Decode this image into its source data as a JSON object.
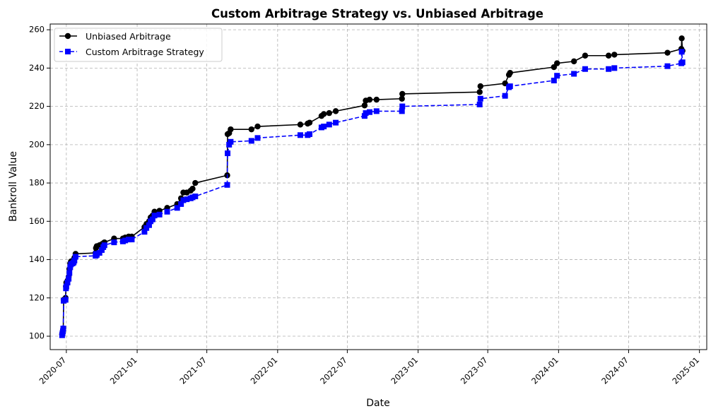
{
  "chart_data": {
    "type": "line",
    "title": "Custom Arbitrage Strategy vs. Unbiased Arbitrage",
    "xlabel": "Date",
    "ylabel": "Bankroll Value",
    "xlim": [
      "2020-05-20",
      "2025-01-20"
    ],
    "ylim": [
      93,
      263
    ],
    "x_ticks": [
      "2020-07-01",
      "2021-01-01",
      "2021-07-01",
      "2022-01-01",
      "2022-07-01",
      "2023-01-01",
      "2023-07-01",
      "2024-01-01",
      "2024-07-01",
      "2025-01-01"
    ],
    "x_tick_labels": [
      "2020-07",
      "2021-01",
      "2021-07",
      "2022-01",
      "2022-07",
      "2023-01",
      "2023-07",
      "2024-01",
      "2024-07",
      "2025-01"
    ],
    "y_ticks": [
      100,
      120,
      140,
      160,
      180,
      200,
      220,
      240,
      260
    ],
    "grid": true,
    "legend_position": "top-left",
    "series": [
      {
        "name": "Unbiased Arbitrage",
        "color": "#000000",
        "line_style": "solid",
        "marker": "circle",
        "points": [
          [
            "2020-06-20",
            101
          ],
          [
            "2020-06-21",
            102
          ],
          [
            "2020-06-22",
            103
          ],
          [
            "2020-06-23",
            104
          ],
          [
            "2020-06-24",
            119
          ],
          [
            "2020-06-29",
            120
          ],
          [
            "2020-06-30",
            126
          ],
          [
            "2020-07-01",
            128
          ],
          [
            "2020-07-04",
            129
          ],
          [
            "2020-07-07",
            131
          ],
          [
            "2020-07-09",
            135
          ],
          [
            "2020-07-11",
            138
          ],
          [
            "2020-07-13",
            139
          ],
          [
            "2020-07-17",
            139
          ],
          [
            "2020-07-20",
            140
          ],
          [
            "2020-07-22",
            141
          ],
          [
            "2020-07-25",
            143
          ],
          [
            "2020-09-15",
            143.5
          ],
          [
            "2020-09-16",
            146
          ],
          [
            "2020-09-18",
            147
          ],
          [
            "2020-09-25",
            147.5
          ],
          [
            "2020-10-01",
            148
          ],
          [
            "2020-10-05",
            148.5
          ],
          [
            "2020-10-08",
            149
          ],
          [
            "2020-11-02",
            151
          ],
          [
            "2020-11-25",
            151
          ],
          [
            "2020-12-01",
            151.5
          ],
          [
            "2020-12-10",
            152
          ],
          [
            "2020-12-18",
            152
          ],
          [
            "2021-01-20",
            157
          ],
          [
            "2021-01-25",
            158.5
          ],
          [
            "2021-02-01",
            160
          ],
          [
            "2021-02-05",
            162
          ],
          [
            "2021-02-10",
            163
          ],
          [
            "2021-02-15",
            165
          ],
          [
            "2021-02-28",
            165.5
          ],
          [
            "2021-03-20",
            167
          ],
          [
            "2021-04-15",
            169
          ],
          [
            "2021-04-25",
            172
          ],
          [
            "2021-05-01",
            175
          ],
          [
            "2021-05-10",
            175
          ],
          [
            "2021-05-20",
            176
          ],
          [
            "2021-05-25",
            177
          ],
          [
            "2021-06-01",
            180
          ],
          [
            "2021-08-23",
            184
          ],
          [
            "2021-08-24",
            205.5
          ],
          [
            "2021-08-28",
            206
          ],
          [
            "2021-09-01",
            208
          ],
          [
            "2021-10-25",
            208
          ],
          [
            "2021-11-10",
            209.5
          ],
          [
            "2022-03-01",
            210.5
          ],
          [
            "2022-03-20",
            211
          ],
          [
            "2022-03-25",
            211.5
          ],
          [
            "2022-04-25",
            215
          ],
          [
            "2022-05-01",
            216
          ],
          [
            "2022-05-15",
            216.5
          ],
          [
            "2022-06-01",
            217.5
          ],
          [
            "2022-08-15",
            220.5
          ],
          [
            "2022-08-18",
            223
          ],
          [
            "2022-08-28",
            223.5
          ],
          [
            "2022-09-15",
            223.5
          ],
          [
            "2022-11-20",
            224
          ],
          [
            "2022-11-21",
            226.5
          ],
          [
            "2023-06-10",
            227.5
          ],
          [
            "2023-06-12",
            230.5
          ],
          [
            "2023-08-15",
            232
          ],
          [
            "2023-08-25",
            236.5
          ],
          [
            "2023-08-28",
            237.5
          ],
          [
            "2023-12-20",
            240.5
          ],
          [
            "2023-12-28",
            242.5
          ],
          [
            "2024-02-10",
            243.5
          ],
          [
            "2024-03-10",
            246.5
          ],
          [
            "2024-05-10",
            246.5
          ],
          [
            "2024-05-25",
            247
          ],
          [
            "2024-10-10",
            248
          ],
          [
            "2024-11-15",
            250
          ],
          [
            "2024-11-16",
            255.5
          ],
          [
            "2024-11-18",
            249
          ]
        ]
      },
      {
        "name": "Custom Arbitrage Strategy",
        "color": "#0000ff",
        "line_style": "dashed",
        "marker": "square",
        "points": [
          [
            "2020-06-20",
            100.5
          ],
          [
            "2020-06-21",
            101.5
          ],
          [
            "2020-06-22",
            102.5
          ],
          [
            "2020-06-23",
            104
          ],
          [
            "2020-06-24",
            118.5
          ],
          [
            "2020-06-29",
            119
          ],
          [
            "2020-06-30",
            125
          ],
          [
            "2020-07-01",
            126
          ],
          [
            "2020-07-04",
            128
          ],
          [
            "2020-07-07",
            130
          ],
          [
            "2020-07-09",
            133
          ],
          [
            "2020-07-11",
            136
          ],
          [
            "2020-07-13",
            137.5
          ],
          [
            "2020-07-17",
            138
          ],
          [
            "2020-07-20",
            138.5
          ],
          [
            "2020-07-22",
            139.5
          ],
          [
            "2020-07-25",
            141.5
          ],
          [
            "2020-09-15",
            142
          ],
          [
            "2020-09-16",
            143
          ],
          [
            "2020-09-18",
            142.5
          ],
          [
            "2020-09-25",
            143.5
          ],
          [
            "2020-10-01",
            145
          ],
          [
            "2020-10-05",
            146.5
          ],
          [
            "2020-10-08",
            147.5
          ],
          [
            "2020-11-02",
            149
          ],
          [
            "2020-11-25",
            149.5
          ],
          [
            "2020-12-01",
            150
          ],
          [
            "2020-12-10",
            150.5
          ],
          [
            "2020-12-18",
            150.5
          ],
          [
            "2021-01-20",
            154.5
          ],
          [
            "2021-01-25",
            156.5
          ],
          [
            "2021-02-01",
            158
          ],
          [
            "2021-02-05",
            160
          ],
          [
            "2021-02-10",
            161
          ],
          [
            "2021-02-15",
            163
          ],
          [
            "2021-02-28",
            163.5
          ],
          [
            "2021-03-20",
            165
          ],
          [
            "2021-04-15",
            167
          ],
          [
            "2021-04-25",
            169
          ],
          [
            "2021-05-01",
            171
          ],
          [
            "2021-05-10",
            171.5
          ],
          [
            "2021-05-20",
            172
          ],
          [
            "2021-05-25",
            172.5
          ],
          [
            "2021-06-01",
            173
          ],
          [
            "2021-08-23",
            179
          ],
          [
            "2021-08-24",
            195.5
          ],
          [
            "2021-08-28",
            200
          ],
          [
            "2021-09-01",
            201.5
          ],
          [
            "2021-10-25",
            202
          ],
          [
            "2021-11-10",
            203.5
          ],
          [
            "2022-03-01",
            205
          ],
          [
            "2022-03-20",
            205
          ],
          [
            "2022-03-25",
            205.5
          ],
          [
            "2022-04-25",
            209
          ],
          [
            "2022-05-01",
            209.5
          ],
          [
            "2022-05-15",
            210.5
          ],
          [
            "2022-06-01",
            211.5
          ],
          [
            "2022-08-15",
            215
          ],
          [
            "2022-08-18",
            216.5
          ],
          [
            "2022-08-28",
            217
          ],
          [
            "2022-09-15",
            217.5
          ],
          [
            "2022-11-20",
            217.5
          ],
          [
            "2022-11-21",
            220
          ],
          [
            "2023-06-10",
            221
          ],
          [
            "2023-06-12",
            224
          ],
          [
            "2023-08-15",
            225.5
          ],
          [
            "2023-08-25",
            230
          ],
          [
            "2023-08-28",
            230.5
          ],
          [
            "2023-12-20",
            233.5
          ],
          [
            "2023-12-28",
            236
          ],
          [
            "2024-02-10",
            237
          ],
          [
            "2024-03-10",
            239.5
          ],
          [
            "2024-05-10",
            239.5
          ],
          [
            "2024-05-25",
            240
          ],
          [
            "2024-10-10",
            241
          ],
          [
            "2024-11-15",
            242.5
          ],
          [
            "2024-11-16",
            248.5
          ],
          [
            "2024-11-18",
            243
          ]
        ]
      }
    ]
  }
}
